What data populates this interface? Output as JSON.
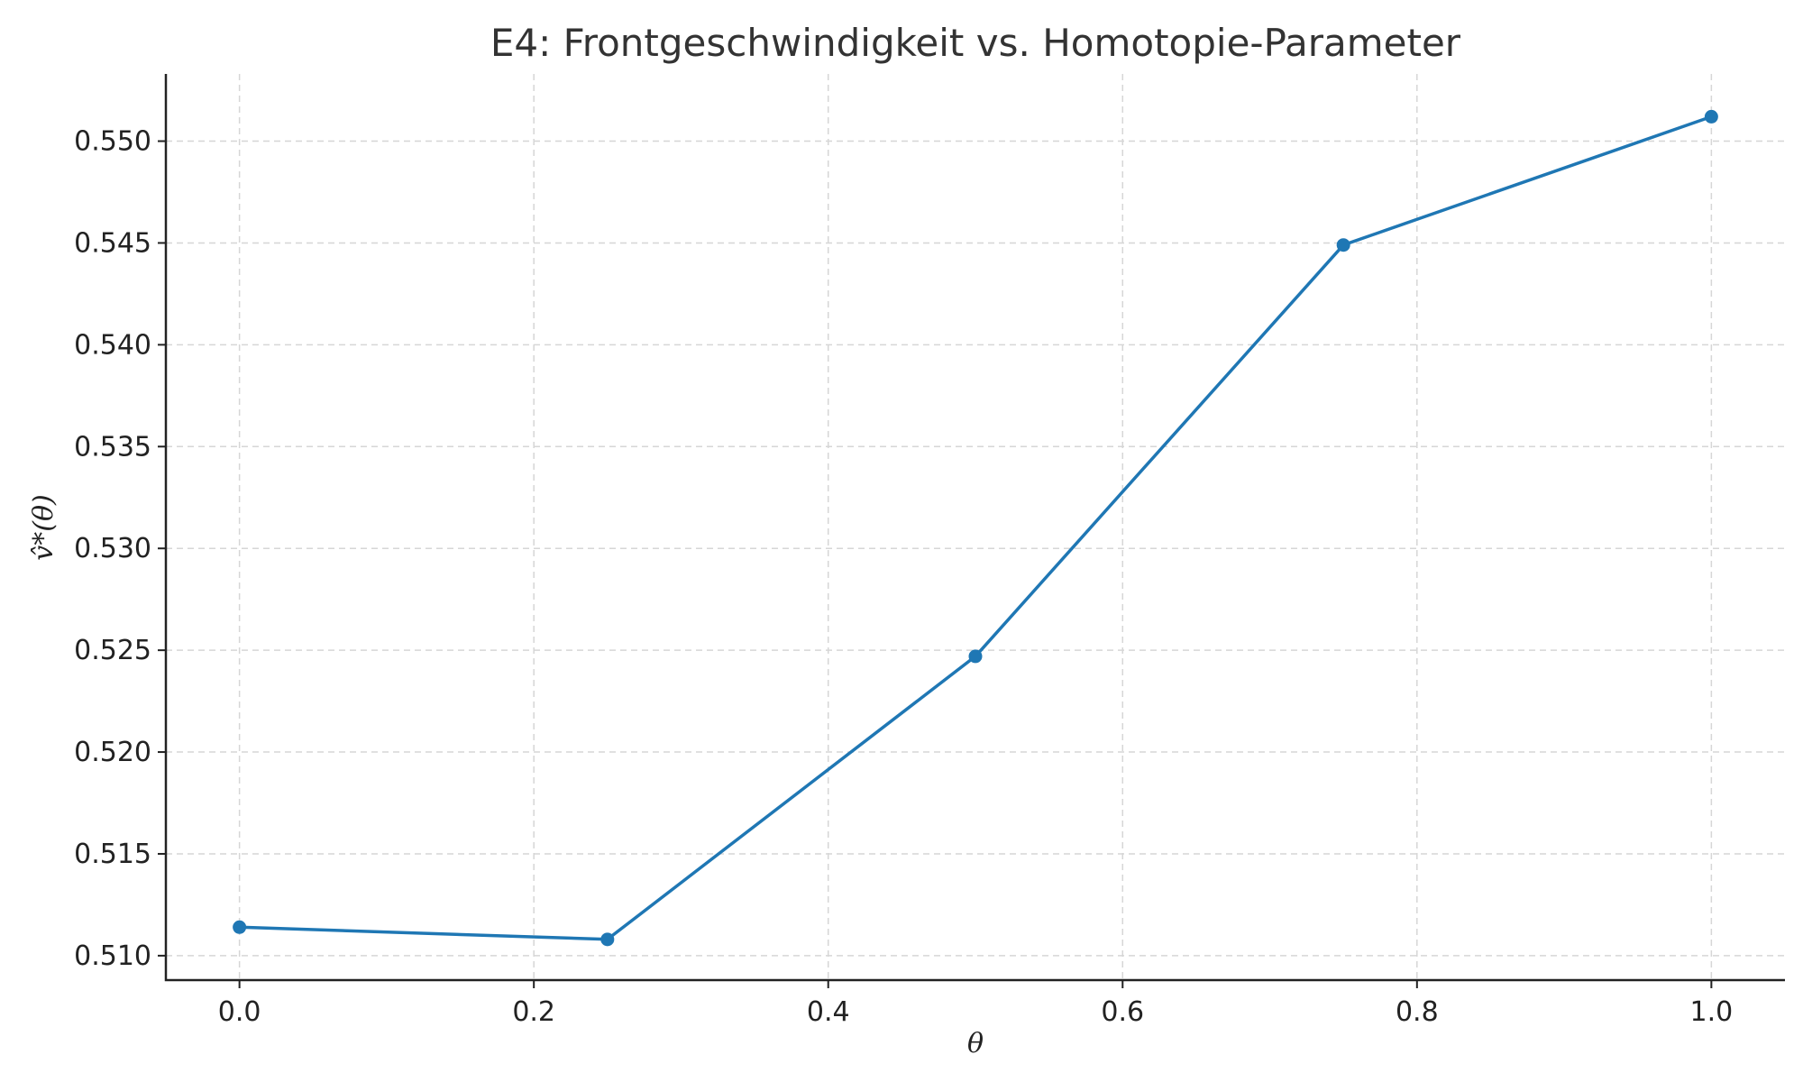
{
  "chart_data": {
    "type": "line",
    "title": "E4: Frontgeschwindigkeit vs. Homotopie-Parameter",
    "xlabel": "θ",
    "ylabel": "v̂*(θ)",
    "xlim": [
      -0.05,
      1.05
    ],
    "ylim": [
      0.5088,
      0.5533
    ],
    "x_ticks": [
      0.0,
      0.2,
      0.4,
      0.6,
      0.8,
      1.0
    ],
    "x_tick_labels": [
      "0.0",
      "0.2",
      "0.4",
      "0.6",
      "0.8",
      "1.0"
    ],
    "y_ticks": [
      0.51,
      0.515,
      0.52,
      0.525,
      0.53,
      0.535,
      0.54,
      0.545,
      0.55
    ],
    "y_tick_labels": [
      "0.510",
      "0.515",
      "0.520",
      "0.525",
      "0.530",
      "0.535",
      "0.540",
      "0.545",
      "0.550"
    ],
    "grid": true,
    "series": [
      {
        "color": "#1f77b4",
        "marker": "circle",
        "x": [
          0.0,
          0.25,
          0.5,
          0.75,
          1.0
        ],
        "y": [
          0.5114,
          0.5108,
          0.5247,
          0.5449,
          0.5512
        ]
      }
    ]
  }
}
